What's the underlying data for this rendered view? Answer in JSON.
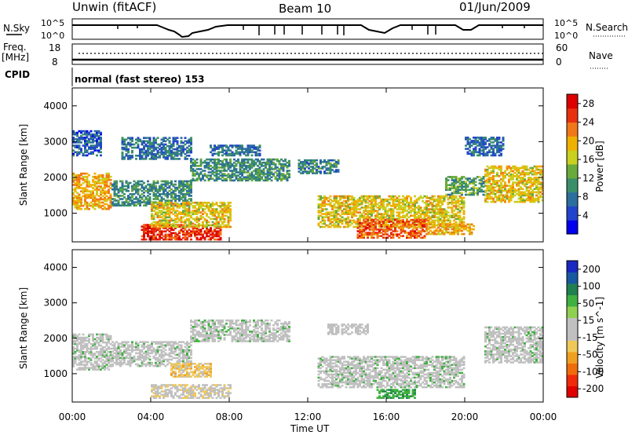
{
  "header": {
    "station": "Unwin (fitACF)",
    "beam": "Beam 10",
    "date": "01/Jun/2009"
  },
  "status_panels": {
    "nsky_label": "N.Sky",
    "nsky_ticks": [
      "10^5",
      "10^0"
    ],
    "nsearch_label": "N.Search",
    "freq_label": "Freq.",
    "freq_unit": "[MHz]",
    "freq_ticks": [
      "18",
      "8"
    ],
    "nave_label": "Nave",
    "nave_ticks": [
      "60",
      "0"
    ],
    "cpid_label": "CPID",
    "cpid_value": "normal (fast stereo) 153"
  },
  "colors": {
    "power_scale": [
      "#0000ee",
      "#2244cc",
      "#2c6e9e",
      "#3a8f6a",
      "#6aaa3a",
      "#c8d020",
      "#f0b000",
      "#f07818",
      "#e83010",
      "#dd0000"
    ],
    "velocity_scale": [
      "#e00000",
      "#f02a0a",
      "#f06c0a",
      "#f0a020",
      "#f0c858",
      "#c0c0c0",
      "#c0c0c0",
      "#90d050",
      "#40b040",
      "#208050",
      "#1858a0",
      "#1828c0"
    ]
  },
  "chart_data": [
    {
      "type": "heatmap",
      "title": "",
      "xlabel": "Time UT",
      "ylabel": "Slant Range [km]",
      "xlim": [
        "00:00",
        "24:00"
      ],
      "ylim": [
        200,
        4500
      ],
      "x_tick_labels": [
        "00:00",
        "04:00",
        "08:00",
        "12:00",
        "16:00",
        "20:00",
        "00:00"
      ],
      "y_ticks": [
        1000,
        2000,
        3000,
        4000
      ],
      "colorbar": {
        "label": "Power [dB]",
        "ticks": [
          4,
          8,
          12,
          16,
          20,
          24,
          28
        ],
        "range": [
          0,
          30
        ]
      },
      "regions": [
        {
          "t0": 0.0,
          "t1": 2.0,
          "r0": 1100,
          "r1": 2100,
          "level": 20
        },
        {
          "t0": 0.0,
          "t1": 1.5,
          "r0": 2600,
          "r1": 3300,
          "level": 6
        },
        {
          "t0": 2.0,
          "t1": 6.0,
          "r0": 1200,
          "r1": 1900,
          "level": 10
        },
        {
          "t0": 3.5,
          "t1": 7.5,
          "r0": 250,
          "r1": 700,
          "level": 26
        },
        {
          "t0": 4.0,
          "t1": 8.0,
          "r0": 600,
          "r1": 1300,
          "level": 18
        },
        {
          "t0": 2.5,
          "t1": 6.0,
          "r0": 2500,
          "r1": 3100,
          "level": 8
        },
        {
          "t0": 6.0,
          "t1": 11.0,
          "r0": 1900,
          "r1": 2500,
          "level": 10
        },
        {
          "t0": 7.0,
          "t1": 9.5,
          "r0": 2600,
          "r1": 2900,
          "level": 8
        },
        {
          "t0": 11.5,
          "t1": 13.5,
          "r0": 2100,
          "r1": 2500,
          "level": 9
        },
        {
          "t0": 12.5,
          "t1": 20.0,
          "r0": 600,
          "r1": 1500,
          "level": 18
        },
        {
          "t0": 14.5,
          "t1": 18.0,
          "r0": 300,
          "r1": 800,
          "level": 24
        },
        {
          "t0": 18.0,
          "t1": 20.5,
          "r0": 400,
          "r1": 700,
          "level": 20
        },
        {
          "t0": 21.0,
          "t1": 24.0,
          "r0": 1300,
          "r1": 2300,
          "level": 18
        },
        {
          "t0": 20.0,
          "t1": 22.0,
          "r0": 2600,
          "r1": 3100,
          "level": 7
        },
        {
          "t0": 19.0,
          "t1": 21.0,
          "r0": 1500,
          "r1": 2000,
          "level": 12
        }
      ]
    },
    {
      "type": "heatmap",
      "title": "",
      "xlabel": "Time UT",
      "ylabel": "Slant Range [km]",
      "xlim": [
        "00:00",
        "24:00"
      ],
      "ylim": [
        200,
        4500
      ],
      "x_tick_labels": [
        "00:00",
        "04:00",
        "08:00",
        "12:00",
        "16:00",
        "20:00",
        "00:00"
      ],
      "y_ticks": [
        1000,
        2000,
        3000,
        4000
      ],
      "colorbar": {
        "label": "Velocity [m s^-1]",
        "ticks": [
          200,
          100,
          50,
          15,
          -15,
          -50,
          -100,
          -200
        ],
        "range": [
          -250,
          250
        ]
      },
      "regions": [
        {
          "t0": 0.0,
          "t1": 2.0,
          "r0": 1100,
          "r1": 2100,
          "level": 0
        },
        {
          "t0": 2.0,
          "t1": 6.0,
          "r0": 1200,
          "r1": 1900,
          "level": 0
        },
        {
          "t0": 5.0,
          "t1": 7.0,
          "r0": 900,
          "r1": 1300,
          "level": -60
        },
        {
          "t0": 4.0,
          "t1": 8.0,
          "r0": 300,
          "r1": 700,
          "level": -40
        },
        {
          "t0": 6.0,
          "t1": 11.0,
          "r0": 1900,
          "r1": 2500,
          "level": 0
        },
        {
          "t0": 12.5,
          "t1": 20.0,
          "r0": 600,
          "r1": 1500,
          "level": 0
        },
        {
          "t0": 15.5,
          "t1": 17.5,
          "r0": 300,
          "r1": 550,
          "level": 40
        },
        {
          "t0": 21.0,
          "t1": 24.0,
          "r0": 1300,
          "r1": 2300,
          "level": 0
        },
        {
          "t0": 13.0,
          "t1": 15.0,
          "r0": 2100,
          "r1": 2400,
          "level": -30
        }
      ]
    }
  ]
}
